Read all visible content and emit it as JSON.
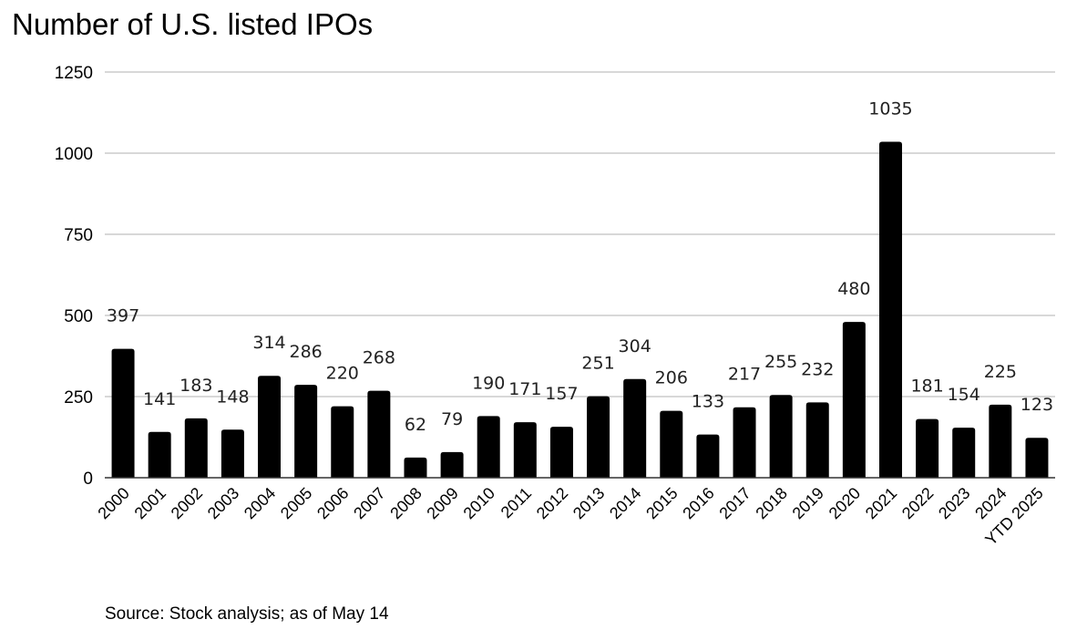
{
  "chart_data": {
    "type": "bar",
    "title": "Number of U.S. listed IPOs",
    "xlabel": "",
    "ylabel": "",
    "ylim": [
      0,
      1250
    ],
    "yticks": [
      "0",
      "250",
      "500",
      "750",
      "1000",
      "1250"
    ],
    "ytick_values": [
      0,
      250,
      500,
      750,
      1000,
      1250
    ],
    "grid": true,
    "legend": "none",
    "bar_color": "#000000",
    "grid_color": "#cccccc",
    "categories": [
      "2000",
      "2001",
      "2002",
      "2003",
      "2004",
      "2005",
      "2006",
      "2007",
      "2008",
      "2009",
      "2010",
      "2011",
      "2012",
      "2013",
      "2014",
      "2015",
      "2016",
      "2017",
      "2018",
      "2019",
      "2020",
      "2021",
      "2022",
      "2023",
      "2024",
      "YTD 2025"
    ],
    "values": [
      397,
      141,
      183,
      148,
      314,
      286,
      220,
      268,
      62,
      79,
      190,
      171,
      157,
      251,
      304,
      206,
      133,
      217,
      255,
      232,
      480,
      1035,
      181,
      154,
      225,
      123
    ],
    "data_labels": [
      "397",
      "141",
      "183",
      "148",
      "314",
      "286",
      "220",
      "268",
      "62",
      "79",
      "190",
      "171",
      "157",
      "251",
      "304",
      "206",
      "133",
      "217",
      "255",
      "232",
      "480",
      "1035",
      "181",
      "154",
      "225",
      "123"
    ],
    "source": "Source: Stock analysis; as of May 14"
  }
}
